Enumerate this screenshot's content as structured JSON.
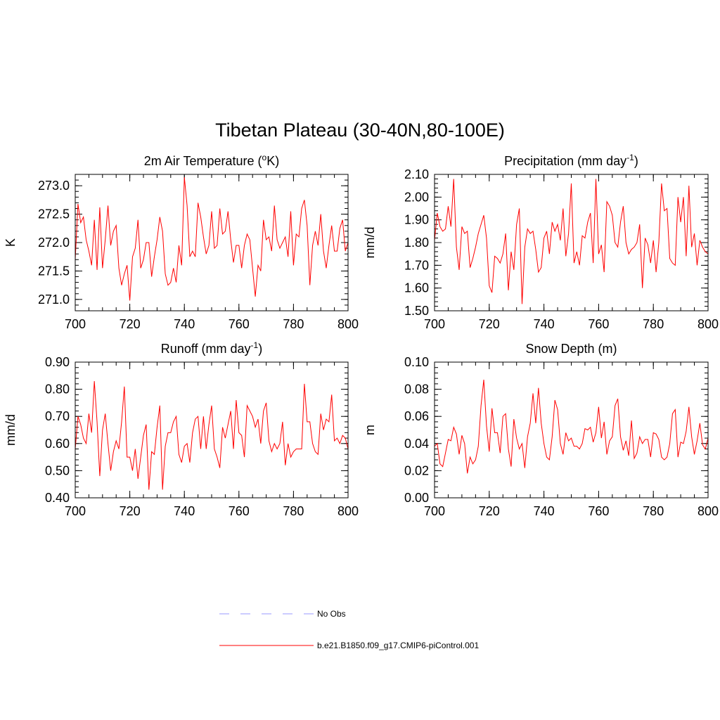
{
  "figure_title": "Tibetan Plateau (30-40N,80-100E)",
  "colors": {
    "model": "#ff0000",
    "obs": "#9999ff",
    "axis": "#000000"
  },
  "legend": {
    "obs_label": "No Obs",
    "model_label": "b.e21.B1850.f09_g17.CMIP6-piControl.001"
  },
  "chart_data": [
    {
      "type": "line",
      "title": "2m Air Temperature (",
      "title_sup": "o",
      "title_after": "K)",
      "xlabel": "",
      "ylabel": "K",
      "xlim": [
        700,
        800
      ],
      "ylim": [
        270.8,
        273.2
      ],
      "xticks": [
        700,
        720,
        740,
        760,
        780,
        800
      ],
      "xtick_labels": [
        "700",
        "720",
        "740",
        "760",
        "780",
        "800"
      ],
      "yticks": [
        271.0,
        271.5,
        272.0,
        272.5,
        273.0
      ],
      "ytick_labels": [
        "271.0",
        "271.5",
        "272.0",
        "272.5",
        "273.0"
      ],
      "x_start": 700,
      "series": [
        {
          "name": "b.e21.B1850.f09_g17.CMIP6-piControl.001",
          "values": [
            271.7,
            272.68,
            272.35,
            272.45,
            272.05,
            271.85,
            271.6,
            272.4,
            271.52,
            272.62,
            271.55,
            272.05,
            272.65,
            271.95,
            272.2,
            272.3,
            271.55,
            271.25,
            271.45,
            271.6,
            270.98,
            271.75,
            271.9,
            272.4,
            271.55,
            271.7,
            272.0,
            272.0,
            271.4,
            271.75,
            272.05,
            272.45,
            272.2,
            271.45,
            271.25,
            271.3,
            271.55,
            271.3,
            271.95,
            271.6,
            273.15,
            272.65,
            271.75,
            271.85,
            271.75,
            272.7,
            272.45,
            272.1,
            271.8,
            271.95,
            272.55,
            271.9,
            271.95,
            272.6,
            272.15,
            272.2,
            272.55,
            272.05,
            271.65,
            271.95,
            271.95,
            271.55,
            271.95,
            272.15,
            272.05,
            271.55,
            271.05,
            271.6,
            271.5,
            272.4,
            272.05,
            272.1,
            271.85,
            272.65,
            272.05,
            271.9,
            272.0,
            272.1,
            271.75,
            272.55,
            271.6,
            272.15,
            272.1,
            272.6,
            272.75,
            272.3,
            271.25,
            271.95,
            272.2,
            271.95,
            272.5,
            271.85,
            271.55,
            271.95,
            272.3,
            271.85,
            271.85,
            272.25,
            272.4,
            271.85,
            272.0
          ]
        }
      ]
    },
    {
      "type": "line",
      "title": "Precipitation (mm day",
      "title_sup": "-1",
      "title_after": ")",
      "xlabel": "",
      "ylabel": "mm/d",
      "xlim": [
        700,
        800
      ],
      "ylim": [
        1.5,
        2.1
      ],
      "xticks": [
        700,
        720,
        740,
        760,
        780,
        800
      ],
      "xtick_labels": [
        "700",
        "720",
        "740",
        "760",
        "780",
        "800"
      ],
      "yticks": [
        1.5,
        1.6,
        1.7,
        1.8,
        1.9,
        2.0,
        2.1
      ],
      "ytick_labels": [
        "1.50",
        "1.60",
        "1.70",
        "1.80",
        "1.90",
        "2.00",
        "2.10"
      ],
      "x_start": 700,
      "series": [
        {
          "name": "b.e21.B1850.f09_g17.CMIP6-piControl.001",
          "values": [
            1.81,
            1.93,
            1.87,
            1.85,
            1.86,
            1.96,
            1.87,
            2.08,
            1.78,
            1.68,
            1.87,
            1.84,
            1.85,
            1.69,
            1.73,
            1.78,
            1.84,
            1.88,
            1.92,
            1.82,
            1.61,
            1.58,
            1.74,
            1.73,
            1.71,
            1.75,
            1.84,
            1.59,
            1.76,
            1.68,
            1.88,
            1.95,
            1.53,
            1.78,
            1.86,
            1.84,
            1.85,
            1.77,
            1.67,
            1.69,
            1.82,
            1.85,
            1.75,
            1.89,
            1.85,
            1.88,
            1.81,
            1.95,
            1.74,
            1.84,
            2.06,
            1.71,
            1.76,
            1.7,
            1.83,
            1.82,
            1.89,
            1.93,
            1.71,
            2.08,
            1.75,
            1.79,
            1.67,
            1.98,
            1.96,
            1.92,
            1.8,
            1.78,
            1.89,
            1.96,
            1.8,
            1.75,
            1.77,
            1.78,
            1.8,
            1.88,
            1.6,
            1.82,
            1.79,
            1.71,
            1.81,
            1.67,
            1.8,
            2.06,
            1.94,
            1.95,
            1.73,
            1.71,
            1.7,
            2.0,
            1.89,
            2.0,
            1.74,
            2.05,
            1.78,
            1.84,
            1.7,
            1.81,
            1.78,
            1.76,
            1.75
          ]
        }
      ]
    },
    {
      "type": "line",
      "title": "Runoff (mm day",
      "title_sup": "-1",
      "title_after": ")",
      "xlabel": "",
      "ylabel": "mm/d",
      "xlim": [
        700,
        800
      ],
      "ylim": [
        0.4,
        0.9
      ],
      "xticks": [
        700,
        720,
        740,
        760,
        780,
        800
      ],
      "xtick_labels": [
        "700",
        "720",
        "740",
        "760",
        "780",
        "800"
      ],
      "yticks": [
        0.4,
        0.5,
        0.6,
        0.7,
        0.8,
        0.9
      ],
      "ytick_labels": [
        "0.40",
        "0.50",
        "0.60",
        "0.70",
        "0.80",
        "0.90"
      ],
      "x_start": 700,
      "series": [
        {
          "name": "b.e21.B1850.f09_g17.CMIP6-piControl.001",
          "values": [
            0.58,
            0.7,
            0.67,
            0.62,
            0.6,
            0.71,
            0.64,
            0.83,
            0.68,
            0.48,
            0.65,
            0.71,
            0.6,
            0.5,
            0.57,
            0.61,
            0.58,
            0.68,
            0.81,
            0.55,
            0.55,
            0.5,
            0.58,
            0.47,
            0.55,
            0.63,
            0.67,
            0.43,
            0.57,
            0.56,
            0.66,
            0.74,
            0.43,
            0.59,
            0.64,
            0.64,
            0.68,
            0.7,
            0.56,
            0.53,
            0.59,
            0.6,
            0.53,
            0.64,
            0.69,
            0.7,
            0.58,
            0.7,
            0.58,
            0.67,
            0.74,
            0.58,
            0.55,
            0.51,
            0.66,
            0.62,
            0.67,
            0.72,
            0.58,
            0.76,
            0.64,
            0.63,
            0.55,
            0.74,
            0.72,
            0.7,
            0.66,
            0.69,
            0.6,
            0.72,
            0.75,
            0.61,
            0.57,
            0.6,
            0.58,
            0.6,
            0.68,
            0.52,
            0.6,
            0.55,
            0.57,
            0.58,
            0.58,
            0.58,
            0.82,
            0.68,
            0.68,
            0.6,
            0.57,
            0.56,
            0.71,
            0.65,
            0.69,
            0.68,
            0.78,
            0.61,
            0.62,
            0.6,
            0.63,
            0.62,
            0.58
          ]
        }
      ]
    },
    {
      "type": "line",
      "title": "Snow Depth (m)",
      "title_sup": "",
      "title_after": "",
      "xlabel": "",
      "ylabel": "m",
      "xlim": [
        700,
        800
      ],
      "ylim": [
        0.0,
        0.1
      ],
      "xticks": [
        700,
        720,
        740,
        760,
        780,
        800
      ],
      "xtick_labels": [
        "700",
        "720",
        "740",
        "760",
        "780",
        "800"
      ],
      "yticks": [
        0.0,
        0.02,
        0.04,
        0.06,
        0.08,
        0.1
      ],
      "ytick_labels": [
        "0.00",
        "0.02",
        "0.04",
        "0.06",
        "0.08",
        "0.10"
      ],
      "x_start": 700,
      "series": [
        {
          "name": "b.e21.B1850.f09_g17.CMIP6-piControl.001",
          "values": [
            0.038,
            0.04,
            0.025,
            0.023,
            0.033,
            0.043,
            0.042,
            0.052,
            0.047,
            0.032,
            0.046,
            0.04,
            0.018,
            0.03,
            0.025,
            0.028,
            0.038,
            0.068,
            0.087,
            0.053,
            0.034,
            0.066,
            0.048,
            0.048,
            0.033,
            0.06,
            0.062,
            0.036,
            0.023,
            0.058,
            0.044,
            0.036,
            0.04,
            0.022,
            0.045,
            0.055,
            0.077,
            0.055,
            0.081,
            0.055,
            0.04,
            0.03,
            0.028,
            0.045,
            0.072,
            0.065,
            0.04,
            0.032,
            0.048,
            0.042,
            0.044,
            0.038,
            0.038,
            0.036,
            0.04,
            0.051,
            0.05,
            0.052,
            0.041,
            0.048,
            0.067,
            0.044,
            0.056,
            0.032,
            0.042,
            0.045,
            0.068,
            0.073,
            0.045,
            0.035,
            0.042,
            0.031,
            0.057,
            0.029,
            0.033,
            0.045,
            0.04,
            0.043,
            0.043,
            0.03,
            0.048,
            0.047,
            0.043,
            0.03,
            0.028,
            0.03,
            0.04,
            0.062,
            0.065,
            0.03,
            0.041,
            0.04,
            0.049,
            0.067,
            0.045,
            0.032,
            0.042,
            0.055,
            0.039,
            0.036,
            0.044
          ]
        }
      ]
    }
  ]
}
